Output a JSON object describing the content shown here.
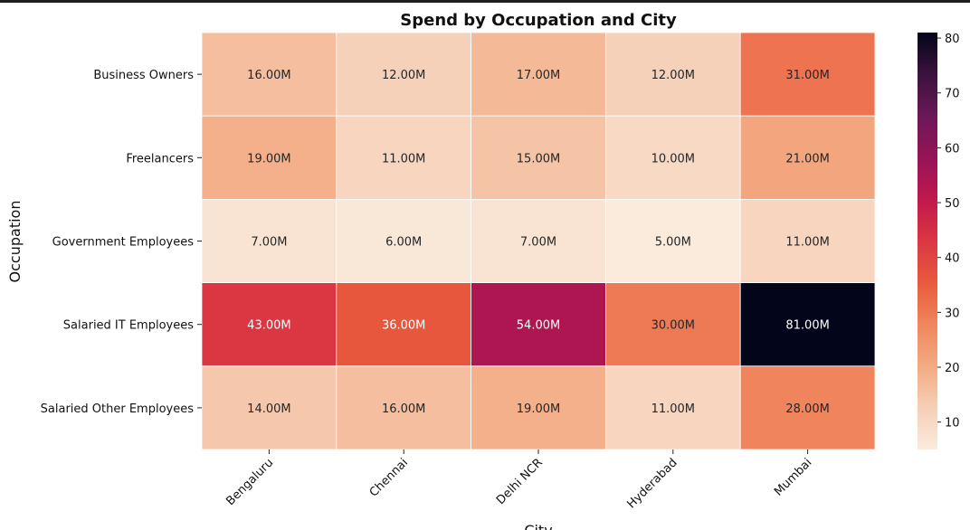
{
  "chart_data": {
    "type": "heatmap",
    "title": "Spend by Occupation and City",
    "xlabel": "City",
    "ylabel": "Occupation",
    "x_categories": [
      "Bengaluru",
      "Chennai",
      "Delhi NCR",
      "Hyderabad",
      "Mumbai"
    ],
    "y_categories": [
      "Business Owners",
      "Freelancers",
      "Government Employees",
      "Salaried IT Employees",
      "Salaried Other Employees"
    ],
    "values": [
      [
        16,
        12,
        17,
        12,
        31
      ],
      [
        19,
        11,
        15,
        10,
        21
      ],
      [
        7,
        6,
        7,
        5,
        11
      ],
      [
        43,
        36,
        54,
        30,
        81
      ],
      [
        14,
        16,
        19,
        11,
        28
      ]
    ],
    "cell_labels": [
      [
        "16.00M",
        "12.00M",
        "17.00M",
        "12.00M",
        "31.00M"
      ],
      [
        "19.00M",
        "11.00M",
        "15.00M",
        "10.00M",
        "21.00M"
      ],
      [
        "7.00M",
        "6.00M",
        "7.00M",
        "5.00M",
        "11.00M"
      ],
      [
        "43.00M",
        "36.00M",
        "54.00M",
        "30.00M",
        "81.00M"
      ],
      [
        "14.00M",
        "16.00M",
        "19.00M",
        "11.00M",
        "28.00M"
      ]
    ],
    "colorbar": {
      "range": [
        5,
        81
      ],
      "ticks": [
        10,
        20,
        30,
        40,
        50,
        60,
        70,
        80
      ],
      "colormap": "rocket_r"
    }
  }
}
